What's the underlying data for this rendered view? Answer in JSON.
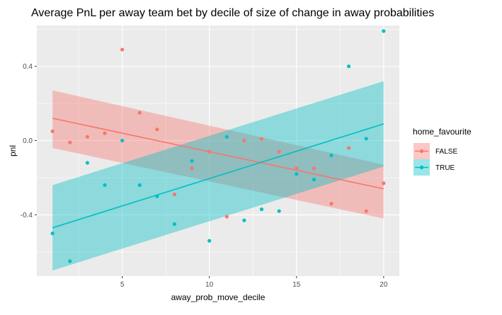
{
  "chart_data": {
    "type": "scatter",
    "title": "Average PnL per away team bet by decile of size of change in away probabilities",
    "xlabel": "away_prob_move_decile",
    "ylabel": "pnl",
    "xlim": [
      0.1,
      20.9
    ],
    "ylim": [
      -0.73,
      0.62
    ],
    "x_ticks": [
      5,
      10,
      15,
      20
    ],
    "y_ticks": [
      0.4,
      0.0,
      -0.4
    ],
    "y_tick_labels": [
      "0.4",
      "0.0",
      "-0.4"
    ],
    "x_tick_labels": [
      "5",
      "10",
      "15",
      "20"
    ],
    "grid": true,
    "legend": {
      "title": "home_favourite",
      "position": "right"
    },
    "series": [
      {
        "name": "FALSE",
        "color": "#F8766D",
        "x": [
          1,
          2,
          3,
          4,
          5,
          6,
          7,
          8,
          9,
          10,
          11,
          12,
          13,
          14,
          15,
          16,
          17,
          18,
          19,
          20
        ],
        "y": [
          0.05,
          -0.01,
          0.02,
          0.04,
          0.49,
          0.15,
          0.06,
          -0.29,
          -0.15,
          -0.06,
          -0.41,
          0.0,
          0.01,
          -0.06,
          -0.15,
          -0.15,
          -0.34,
          -0.04,
          -0.38,
          -0.23
        ],
        "trend": {
          "start": [
            1,
            0.12
          ],
          "end": [
            20,
            -0.26
          ]
        },
        "band_upper": {
          "start": [
            1,
            0.27
          ],
          "end": [
            20,
            -0.13
          ]
        },
        "band_lower": {
          "start": [
            1,
            -0.04
          ],
          "end": [
            20,
            -0.42
          ]
        }
      },
      {
        "name": "TRUE",
        "color": "#00BFC4",
        "x": [
          1,
          2,
          3,
          4,
          5,
          6,
          7,
          8,
          9,
          10,
          11,
          12,
          13,
          14,
          15,
          16,
          17,
          18,
          19,
          20
        ],
        "y": [
          -0.5,
          -0.65,
          -0.12,
          -0.24,
          0.0,
          -0.24,
          -0.3,
          -0.45,
          -0.11,
          -0.54,
          0.02,
          -0.43,
          -0.37,
          -0.38,
          -0.18,
          -0.21,
          -0.08,
          0.4,
          0.01,
          0.59
        ],
        "trend": {
          "start": [
            1,
            -0.47
          ],
          "end": [
            20,
            0.09
          ]
        },
        "band_upper": {
          "start": [
            1,
            -0.24
          ],
          "end": [
            20,
            0.32
          ]
        },
        "band_lower": {
          "start": [
            1,
            -0.7
          ],
          "end": [
            20,
            -0.14
          ]
        }
      }
    ]
  }
}
